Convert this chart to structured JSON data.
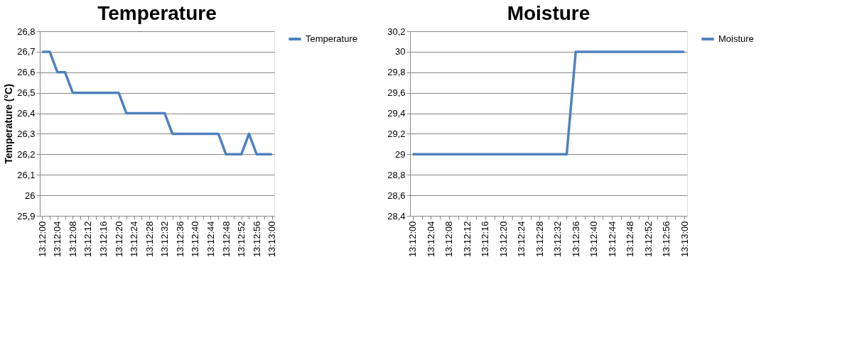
{
  "chart_data": [
    {
      "type": "line",
      "title": "Temperature",
      "ylabel": "Temperature (°C)",
      "categories": [
        "13:12:00",
        null,
        "13:12:04",
        null,
        "13:12:08",
        null,
        "13:12:12",
        null,
        "13:12:16",
        null,
        "13:12:20",
        null,
        "13:12:24",
        null,
        "13:12:28",
        null,
        "13:12:32",
        null,
        "13:12:36",
        null,
        "13:12:40",
        null,
        "13:12:44",
        null,
        "13:12:48",
        null,
        "13:12:52",
        null,
        "13:12:56",
        null,
        "13:13:00"
      ],
      "series": [
        {
          "name": "Temperature",
          "color": "#4f81bd",
          "values": [
            26.7,
            26.7,
            26.6,
            26.6,
            26.5,
            26.5,
            26.5,
            26.5,
            26.5,
            26.5,
            26.5,
            26.4,
            26.4,
            26.4,
            26.4,
            26.4,
            26.4,
            26.3,
            26.3,
            26.3,
            26.3,
            26.3,
            26.3,
            26.3,
            26.2,
            26.2,
            26.2,
            26.3,
            26.2,
            26.2,
            26.2
          ]
        }
      ],
      "ylim": [
        25.9,
        26.8
      ],
      "yticks": [
        {
          "value": 25.9,
          "label": "25,9"
        },
        {
          "value": 26,
          "label": "26"
        },
        {
          "value": 26.1,
          "label": "26,1"
        },
        {
          "value": 26.2,
          "label": "26,2"
        },
        {
          "value": 26.3,
          "label": "26,3"
        },
        {
          "value": 26.4,
          "label": "26,4"
        },
        {
          "value": 26.5,
          "label": "26,5"
        },
        {
          "value": 26.6,
          "label": "26,6"
        },
        {
          "value": 26.7,
          "label": "26,7"
        },
        {
          "value": 26.8,
          "label": "26,8"
        }
      ],
      "grid": "y",
      "legend": "right",
      "marker": "none",
      "line_style": "solid"
    },
    {
      "type": "line",
      "title": "Moisture",
      "categories": [
        "13:12:00",
        null,
        "13:12:04",
        null,
        "13:12:08",
        null,
        "13:12:12",
        null,
        "13:12:16",
        null,
        "13:12:20",
        null,
        "13:12:24",
        null,
        "13:12:28",
        null,
        "13:12:32",
        null,
        "13:12:36",
        null,
        "13:12:40",
        null,
        "13:12:44",
        null,
        "13:12:48",
        null,
        "13:12:52",
        null,
        "13:12:56",
        null,
        "13:13:00"
      ],
      "series": [
        {
          "name": "Moisture",
          "color": "#4f81bd",
          "values": [
            29,
            29,
            29,
            29,
            29,
            29,
            29,
            29,
            29,
            29,
            29,
            29,
            29,
            29,
            29,
            29,
            29,
            29,
            30,
            30,
            30,
            30,
            30,
            30,
            30,
            30,
            30,
            30,
            30,
            30,
            30
          ]
        }
      ],
      "ylim": [
        28.4,
        30.2
      ],
      "yticks": [
        {
          "value": 28.4,
          "label": "28,4"
        },
        {
          "value": 28.6,
          "label": "28,6"
        },
        {
          "value": 28.8,
          "label": "28,8"
        },
        {
          "value": 29,
          "label": "29"
        },
        {
          "value": 29.2,
          "label": "29,2"
        },
        {
          "value": 29.4,
          "label": "29,4"
        },
        {
          "value": 29.6,
          "label": "29,6"
        },
        {
          "value": 29.8,
          "label": "29,8"
        },
        {
          "value": 30,
          "label": "30"
        },
        {
          "value": 30.2,
          "label": "30,2"
        }
      ],
      "grid": "y",
      "legend": "right",
      "marker": "none",
      "line_style": "solid"
    }
  ]
}
